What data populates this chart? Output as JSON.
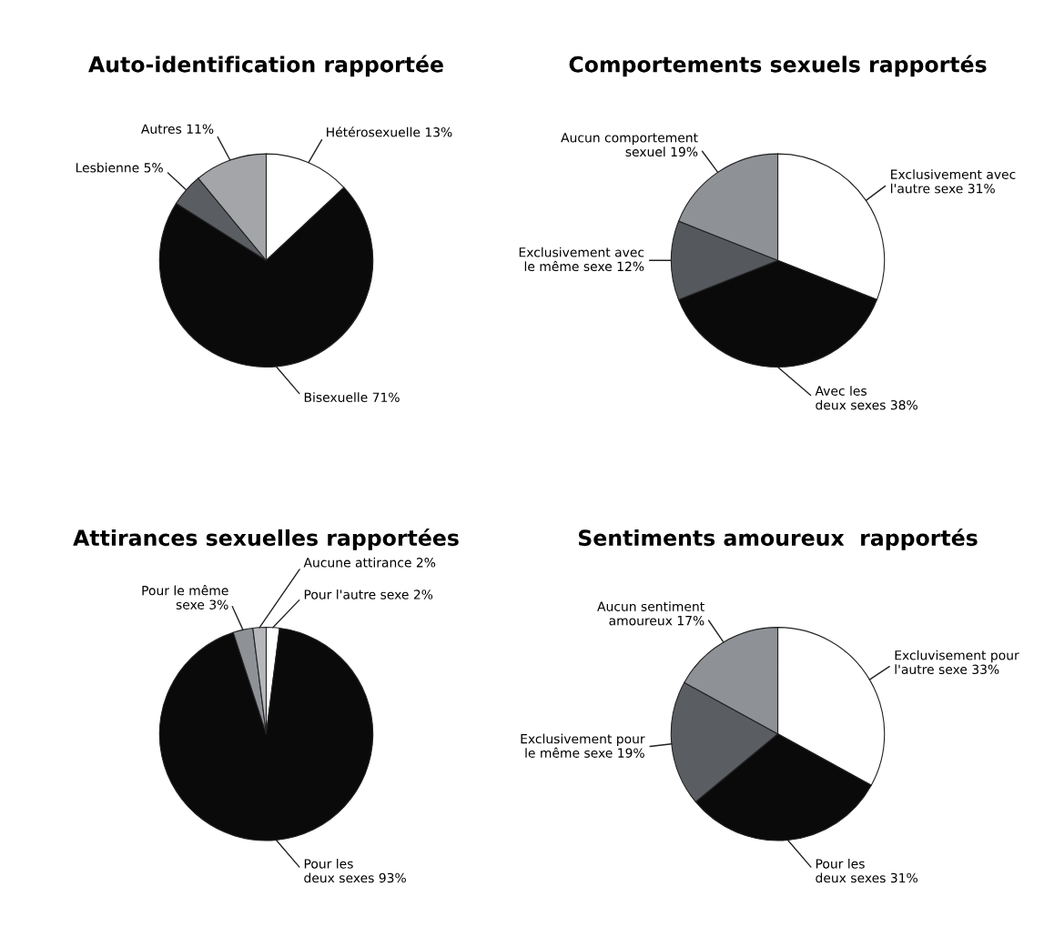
{
  "chart_data": [
    {
      "type": "pie",
      "title": "Auto-identification rapportée",
      "categories": [
        "Hétérosexuelle",
        "Bisexuelle",
        "Lesbienne",
        "Autres"
      ],
      "values": [
        13,
        71,
        5,
        11
      ],
      "value_labels": [
        "13%",
        "71%",
        "5%",
        "11%"
      ],
      "colors": [
        "#ffffff",
        "#0a0a0a",
        "#5a5e63",
        "#a3a5a8"
      ]
    },
    {
      "type": "pie",
      "title": "Comportements sexuels rapportés",
      "categories": [
        "Exclusivement avec\nl'autre sexe",
        "Avec les\ndeux sexes",
        "Exclusivement avec\nle même sexe",
        "Aucun comportement\nsexuel"
      ],
      "values": [
        31,
        38,
        12,
        19
      ],
      "value_labels": [
        "31%",
        "38%",
        "12%",
        "19%"
      ],
      "colors": [
        "#ffffff",
        "#0a0a0a",
        "#55595e",
        "#8e9196"
      ]
    },
    {
      "type": "pie",
      "title": "Attirances sexuelles rapportées",
      "categories": [
        "Pour l'autre sexe",
        "Pour les\ndeux sexes",
        "Pour le même\nsexe",
        "Aucune attirance"
      ],
      "values": [
        2,
        93,
        3,
        2
      ],
      "value_labels": [
        "2%",
        "93%",
        "3%",
        "2%"
      ],
      "colors": [
        "#ffffff",
        "#0a0a0a",
        "#8e9196",
        "#b5b7ba"
      ]
    },
    {
      "type": "pie",
      "title": "Sentiments amoureux  rapportés",
      "categories": [
        "Excluvisement pour\nl'autre sexe",
        "Pour les\ndeux sexes",
        "Exclusivement pour\nle même sexe",
        "Aucun sentiment\namoureux"
      ],
      "values": [
        33,
        31,
        19,
        17
      ],
      "value_labels": [
        "33%",
        "31%",
        "19%",
        "17%"
      ],
      "colors": [
        "#ffffff",
        "#0a0a0a",
        "#5a5e63",
        "#8e9196"
      ]
    }
  ]
}
